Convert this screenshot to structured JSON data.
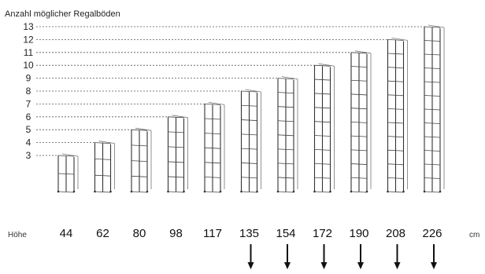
{
  "title": "Anzahl möglicher Regalböden",
  "height_prefix": "Höhe",
  "height_unit": "cm",
  "shelves": [
    {
      "height": "44",
      "count": 3,
      "count_label": "3",
      "arrow": false
    },
    {
      "height": "62",
      "count": 4,
      "count_label": "4",
      "arrow": false
    },
    {
      "height": "80",
      "count": 5,
      "count_label": "5",
      "arrow": false
    },
    {
      "height": "98",
      "count": 6,
      "count_label": "6",
      "arrow": false
    },
    {
      "height": "117",
      "count": 7,
      "count_label": "7",
      "arrow": false
    },
    {
      "height": "135",
      "count": 8,
      "count_label": "8",
      "arrow": true
    },
    {
      "height": "154",
      "count": 9,
      "count_label": "9",
      "arrow": true
    },
    {
      "height": "172",
      "count": 10,
      "count_label": "10",
      "arrow": true
    },
    {
      "height": "190",
      "count": 11,
      "count_label": "11",
      "arrow": true
    },
    {
      "height": "208",
      "count": 12,
      "count_label": "12",
      "arrow": true
    },
    {
      "height": "226",
      "count": 13,
      "count_label": "13",
      "arrow": true
    }
  ],
  "colors": {
    "line": "#333333",
    "text": "#222222"
  }
}
